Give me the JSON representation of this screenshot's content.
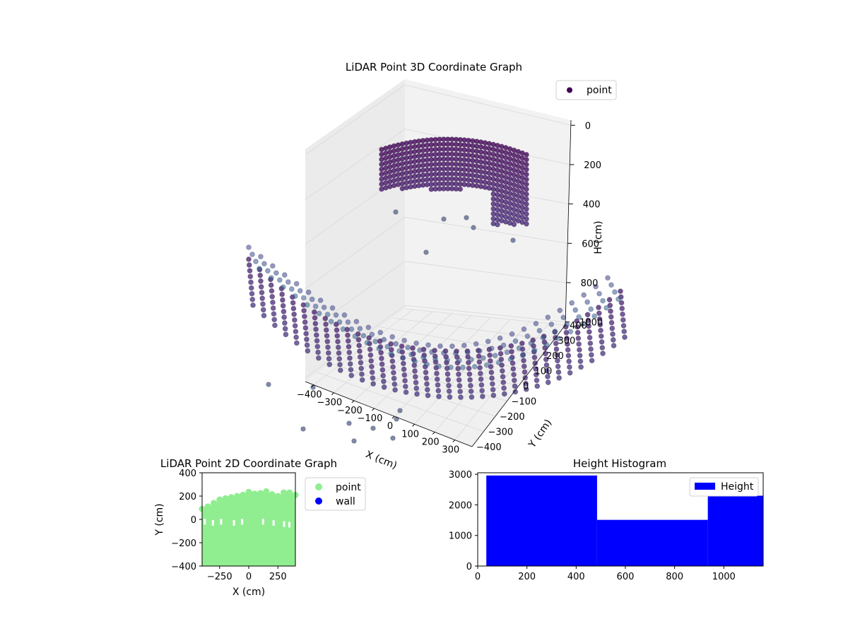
{
  "chart_data": [
    {
      "type": "scatter",
      "projection": "3d",
      "title": "LiDAR Point 3D Coordinate Graph",
      "xlabel": "X (cm)",
      "ylabel": "Y (cm)",
      "zlabel": "H (cm)",
      "xticks": [
        "−400",
        "−300",
        "−200",
        "−100",
        "0",
        "100",
        "200",
        "300"
      ],
      "yticks": [
        "−400",
        "−300",
        "−200",
        "−100",
        "0",
        "100",
        "200",
        "300",
        "400"
      ],
      "zticks": [
        "0",
        "200",
        "400",
        "600",
        "800",
        "1000"
      ],
      "xlim": [
        -400,
        400
      ],
      "ylim": [
        -400,
        400
      ],
      "zlim": [
        0,
        1000
      ],
      "zaxis_inverted": true,
      "grid": true,
      "legend": {
        "entries": [
          "point"
        ],
        "placement": "top-right"
      },
      "colormap": "viridis (by height)",
      "series": [
        {
          "name": "point",
          "color": "#440154",
          "shape": "bowl-shaped floor/wall surface near H≈1000 plus a ceiling cluster near H≈0–400 around X 100–250, Y −200–400",
          "sample_points": [
            {
              "x": -380,
              "y": -300,
              "z": 1000
            },
            {
              "x": -300,
              "y": -250,
              "z": 980
            },
            {
              "x": -200,
              "y": -200,
              "z": 960
            },
            {
              "x": -100,
              "y": -150,
              "z": 950
            },
            {
              "x": 0,
              "y": -100,
              "z": 950
            },
            {
              "x": 100,
              "y": -50,
              "z": 960
            },
            {
              "x": 200,
              "y": 0,
              "z": 980
            },
            {
              "x": 300,
              "y": 50,
              "z": 1000
            },
            {
              "x": 380,
              "y": 100,
              "z": 1000
            },
            {
              "x": 150,
              "y": 200,
              "z": 50
            },
            {
              "x": 200,
              "y": 300,
              "z": 100
            },
            {
              "x": 250,
              "y": 350,
              "z": 200
            },
            {
              "x": 220,
              "y": 150,
              "z": 300
            },
            {
              "x": 180,
              "y": 100,
              "z": 400
            }
          ]
        }
      ]
    },
    {
      "type": "scatter",
      "title": "LiDAR Point 2D Coordinate Graph",
      "xlabel": "X (cm)",
      "ylabel": "Y (cm)",
      "xticks": [
        "−250",
        "0",
        "250"
      ],
      "yticks": [
        "−400",
        "−200",
        "0",
        "200",
        "400"
      ],
      "xlim": [
        -400,
        400
      ],
      "ylim": [
        -400,
        400
      ],
      "legend": {
        "entries": [
          "point",
          "wall"
        ],
        "placement": "outside right"
      },
      "series": [
        {
          "name": "point",
          "color": "#90ee90",
          "region": {
            "x": [
              -400,
              400
            ],
            "y_bottom": -400,
            "top_profile": [
              [
                -400,
                90
              ],
              [
                -350,
                110
              ],
              [
                -300,
                140
              ],
              [
                -250,
                170
              ],
              [
                -200,
                180
              ],
              [
                -150,
                190
              ],
              [
                -100,
                200
              ],
              [
                -50,
                210
              ],
              [
                0,
                235
              ],
              [
                50,
                220
              ],
              [
                100,
                225
              ],
              [
                150,
                240
              ],
              [
                200,
                215
              ],
              [
                250,
                200
              ],
              [
                300,
                230
              ],
              [
                350,
                230
              ],
              [
                400,
                210
              ]
            ]
          },
          "gaps": [
            [
              -380,
              -20
            ],
            [
              -310,
              -30
            ],
            [
              -240,
              -20
            ],
            [
              -130,
              -30
            ],
            [
              -60,
              -20
            ],
            [
              120,
              -20
            ],
            [
              210,
              -30
            ],
            [
              300,
              -40
            ],
            [
              345,
              -45
            ]
          ]
        },
        {
          "name": "wall",
          "color": "#0000ff",
          "points": []
        }
      ]
    },
    {
      "type": "bar",
      "subtype": "histogram",
      "title": "Height Histogram",
      "xticks": [
        "0",
        "200",
        "400",
        "600",
        "800",
        "1000"
      ],
      "yticks": [
        "0",
        "1000",
        "2000",
        "3000"
      ],
      "xlim": [
        0,
        1160
      ],
      "ylim": [
        0,
        3050
      ],
      "legend": {
        "entries": [
          "Height"
        ],
        "placement": "top-right"
      },
      "series": [
        {
          "name": "Height",
          "color": "#0000ff",
          "bins": [
            {
              "x0": 35,
              "x1": 485,
              "count": 2960
            },
            {
              "x0": 485,
              "x1": 935,
              "count": 1510
            },
            {
              "x0": 935,
              "x1": 1160,
              "count": 2300
            }
          ]
        }
      ]
    }
  ]
}
